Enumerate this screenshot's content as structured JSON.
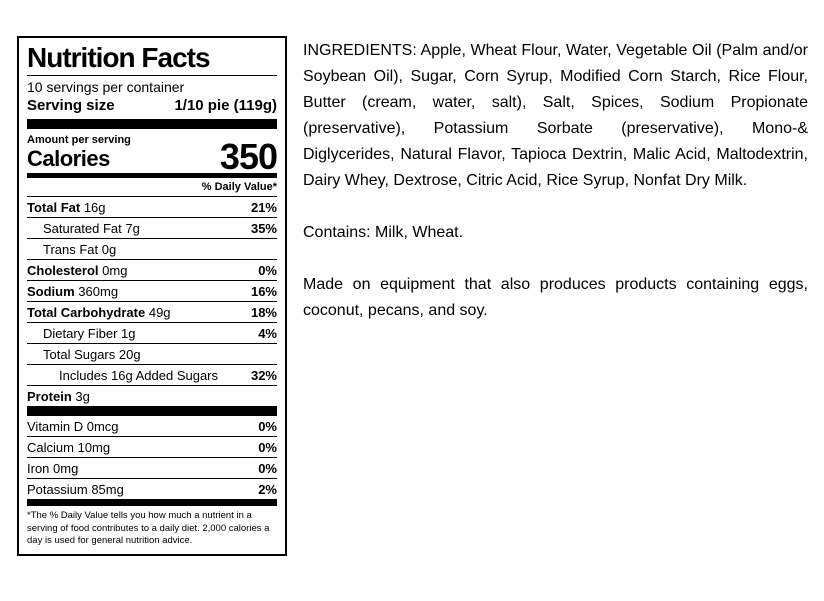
{
  "label": {
    "title": "Nutrition Facts",
    "servings_per_container": "10 servings per container",
    "serving_size_label": "Serving size",
    "serving_size_value": "1/10 pie (119g)",
    "amount_per_serving": "Amount per serving",
    "calories_label": "Calories",
    "calories_value": "350",
    "daily_value_header": "% Daily Value*",
    "rows": [
      {
        "name": "Total Fat",
        "amount": "16g",
        "dv": "21%"
      },
      {
        "name": "Saturated Fat",
        "amount": "7g",
        "dv": "35%"
      },
      {
        "name": "Trans Fat",
        "amount": "0g",
        "dv": ""
      },
      {
        "name": "Cholesterol",
        "amount": "0mg",
        "dv": "0%"
      },
      {
        "name": "Sodium",
        "amount": "360mg",
        "dv": "16%"
      },
      {
        "name": "Total Carbohydrate",
        "amount": "49g",
        "dv": "18%"
      },
      {
        "name": "Dietary Fiber",
        "amount": "1g",
        "dv": "4%"
      },
      {
        "name": "Total Sugars",
        "amount": "20g",
        "dv": ""
      },
      {
        "name": "Includes 16g Added Sugars",
        "amount": "",
        "dv": "32%"
      },
      {
        "name": "Protein",
        "amount": "3g",
        "dv": ""
      }
    ],
    "vitamins": [
      {
        "name": "Vitamin D",
        "amount": "0mcg",
        "dv": "0%"
      },
      {
        "name": "Calcium",
        "amount": "10mg",
        "dv": "0%"
      },
      {
        "name": "Iron",
        "amount": "0mg",
        "dv": "0%"
      },
      {
        "name": "Potassium",
        "amount": "85mg",
        "dv": "2%"
      }
    ],
    "footnote": "*The % Daily Value tells you how much a nutrient in a serving of food contributes to a daily diet. 2,000 calories a day is used for general nutrition advice."
  },
  "info": {
    "ingredients": "INGREDIENTS: Apple, Wheat Flour, Water, Vegetable Oil (Palm and/or Soybean Oil), Sugar, Corn Syrup, Modified Corn Starch, Rice Flour, Butter (cream, water, salt), Salt, Spices, Sodium Propionate (preservative), Potassium Sorbate (preservative), Mono-& Diglycerides, Natural Flavor, Tapioca Dextrin, Malic Acid, Maltodextrin, Dairy Whey, Dextrose, Citric Acid, Rice Syrup, Nonfat Dry Milk.",
    "contains": "Contains: Milk, Wheat.",
    "allergy_note": "Made on equipment that also produces products containing eggs, coconut, pecans, and soy."
  }
}
